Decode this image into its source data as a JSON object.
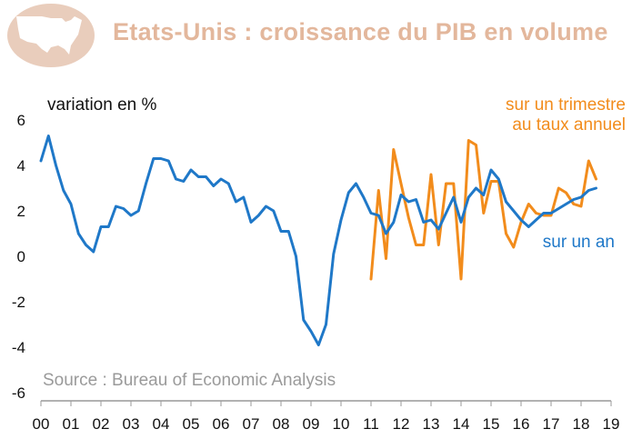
{
  "header": {
    "title": "Etats-Unis : croissance du PIB en volume"
  },
  "chart_data": {
    "type": "line",
    "title": "Etats-Unis : croissance du PIB en volume",
    "ylabel": "variation en %",
    "source": "Source : Bureau of Economic Analysis",
    "ylim": [
      -6,
      6
    ],
    "yticks": [
      "6",
      "4",
      "2",
      "0",
      "-2",
      "-4",
      "-6"
    ],
    "xticks": [
      "00",
      "01",
      "02",
      "03",
      "04",
      "05",
      "06",
      "07",
      "08",
      "09",
      "10",
      "11",
      "12",
      "13",
      "14",
      "15",
      "16",
      "17",
      "18",
      "19"
    ],
    "xlim": [
      2000,
      2019
    ],
    "grid": false,
    "colors": {
      "annual": "#1f78c8",
      "quarterly": "#f28c1c",
      "axis": "#999999"
    },
    "series": [
      {
        "name": "sur un an",
        "label_lines": [
          "sur un an"
        ],
        "x": [
          2000.0,
          2000.25,
          2000.5,
          2000.75,
          2001.0,
          2001.25,
          2001.5,
          2001.75,
          2002.0,
          2002.25,
          2002.5,
          2002.75,
          2003.0,
          2003.25,
          2003.5,
          2003.75,
          2004.0,
          2004.25,
          2004.5,
          2004.75,
          2005.0,
          2005.25,
          2005.5,
          2005.75,
          2006.0,
          2006.25,
          2006.5,
          2006.75,
          2007.0,
          2007.25,
          2007.5,
          2007.75,
          2008.0,
          2008.25,
          2008.5,
          2008.75,
          2009.0,
          2009.25,
          2009.5,
          2009.75,
          2010.0,
          2010.25,
          2010.5,
          2010.75,
          2011.0,
          2011.25,
          2011.5,
          2011.75,
          2012.0,
          2012.25,
          2012.5,
          2012.75,
          2013.0,
          2013.25,
          2013.5,
          2013.75,
          2014.0,
          2014.25,
          2014.5,
          2014.75,
          2015.0,
          2015.25,
          2015.5,
          2015.75,
          2016.0,
          2016.25,
          2016.5,
          2016.75,
          2017.0,
          2017.25,
          2017.5,
          2017.75,
          2018.0,
          2018.25,
          2018.5
        ],
        "values": [
          4.2,
          5.3,
          4.0,
          2.9,
          2.3,
          1.0,
          0.5,
          0.2,
          1.3,
          1.3,
          2.2,
          2.1,
          1.8,
          2.0,
          3.2,
          4.3,
          4.3,
          4.2,
          3.4,
          3.3,
          3.8,
          3.5,
          3.5,
          3.1,
          3.4,
          3.2,
          2.4,
          2.6,
          1.5,
          1.8,
          2.2,
          2.0,
          1.1,
          1.1,
          0.0,
          -2.8,
          -3.3,
          -3.9,
          -3.0,
          0.1,
          1.6,
          2.8,
          3.2,
          2.6,
          1.9,
          1.8,
          1.0,
          1.5,
          2.7,
          2.4,
          2.5,
          1.5,
          1.6,
          1.2,
          1.9,
          2.6,
          1.5,
          2.6,
          3.0,
          2.7,
          3.8,
          3.4,
          2.4,
          2.0,
          1.6,
          1.3,
          1.6,
          1.9,
          1.9,
          2.1,
          2.3,
          2.5,
          2.6,
          2.9,
          3.0
        ]
      },
      {
        "name": "sur un trimestre au taux annuel",
        "label_lines": [
          "sur un trimestre",
          "au taux annuel"
        ],
        "x": [
          2011.0,
          2011.25,
          2011.5,
          2011.75,
          2012.0,
          2012.25,
          2012.5,
          2012.75,
          2013.0,
          2013.25,
          2013.5,
          2013.75,
          2014.0,
          2014.25,
          2014.5,
          2014.75,
          2015.0,
          2015.25,
          2015.5,
          2015.75,
          2016.0,
          2016.25,
          2016.5,
          2016.75,
          2017.0,
          2017.25,
          2017.5,
          2017.75,
          2018.0,
          2018.25,
          2018.5
        ],
        "values": [
          -1.0,
          2.9,
          -0.1,
          4.7,
          3.2,
          1.7,
          0.5,
          0.5,
          3.6,
          0.5,
          3.2,
          3.2,
          -1.0,
          5.1,
          4.9,
          1.9,
          3.3,
          3.3,
          1.0,
          0.4,
          1.5,
          2.3,
          1.9,
          1.8,
          1.8,
          3.0,
          2.8,
          2.3,
          2.2,
          4.2,
          3.4
        ]
      }
    ]
  }
}
